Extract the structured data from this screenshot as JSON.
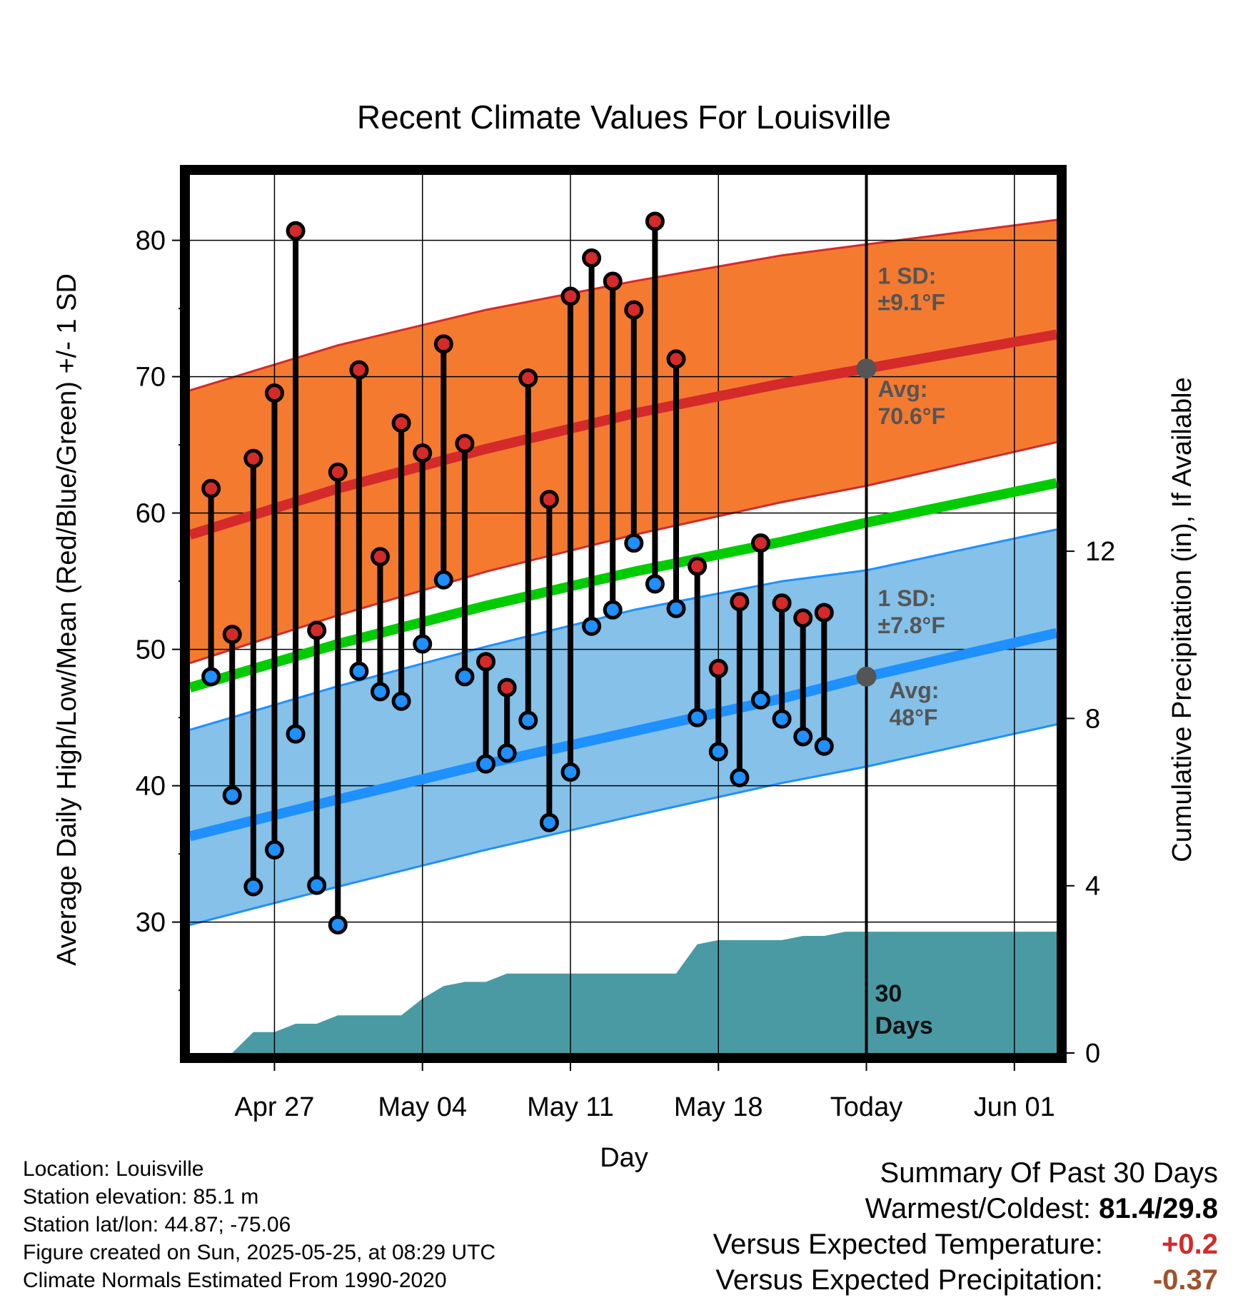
{
  "chart_data": {
    "type": "line",
    "title": "Recent Climate Values For Louisville",
    "xlabel": "Day",
    "ylabel": "Average Daily High/Low/Mean (Red/Blue/Green) +/- 1 SD",
    "y2label": "Cumulative Precipitation (in), If Available",
    "ylim": [
      20.4,
      84.8
    ],
    "y2lim": [
      0,
      21.0
    ],
    "xlim": [
      "2025-04-23",
      "2025-06-03"
    ],
    "yticks": [
      30,
      40,
      50,
      60,
      70,
      80
    ],
    "y2ticks": [
      0,
      4,
      8,
      12
    ],
    "xticks": [
      {
        "date": "2025-04-27",
        "label": "Apr 27"
      },
      {
        "date": "2025-05-04",
        "label": "May 04"
      },
      {
        "date": "2025-05-11",
        "label": "May 11"
      },
      {
        "date": "2025-05-18",
        "label": "May 18"
      },
      {
        "date": "2025-05-25",
        "label": "Today"
      },
      {
        "date": "2025-06-01",
        "label": "Jun 01"
      }
    ],
    "today": "2025-05-25",
    "colors": {
      "high_band": "#f47a30",
      "high_line": "#d42a2a",
      "low_band": "#85c1e9",
      "low_line": "#1e90ff",
      "mean_line": "#00cc00",
      "precip": "#4a9aa4",
      "high_dot": "#d42a2a",
      "low_dot": "#1e90ff"
    },
    "normal_high": {
      "x": [
        "2025-04-23",
        "2025-04-30",
        "2025-05-07",
        "2025-05-14",
        "2025-05-21",
        "2025-05-25",
        "2025-06-03"
      ],
      "mean": [
        58.4,
        61.8,
        64.7,
        67.3,
        69.5,
        70.6,
        73.1
      ],
      "upper": [
        69.0,
        72.3,
        74.9,
        77.0,
        78.9,
        79.7,
        81.5
      ],
      "lower": [
        49.0,
        52.5,
        55.7,
        58.4,
        60.8,
        62.0,
        65.2
      ]
    },
    "normal_low": {
      "x": [
        "2025-04-23",
        "2025-04-30",
        "2025-05-07",
        "2025-05-14",
        "2025-05-21",
        "2025-05-25",
        "2025-06-03"
      ],
      "mean": [
        36.3,
        39.0,
        41.6,
        44.0,
        46.4,
        48.0,
        51.2
      ],
      "upper": [
        44.1,
        47.3,
        50.2,
        52.9,
        55.0,
        55.8,
        58.8
      ],
      "lower": [
        29.8,
        32.6,
        35.3,
        37.8,
        40.2,
        41.4,
        44.5
      ]
    },
    "normal_mean": {
      "x": [
        "2025-04-23",
        "2025-04-30",
        "2025-05-07",
        "2025-05-14",
        "2025-05-21",
        "2025-05-25",
        "2025-06-03"
      ],
      "values": [
        47.2,
        50.4,
        53.2,
        55.7,
        57.9,
        59.3,
        62.2
      ]
    },
    "series": [
      {
        "name": "High",
        "x": [
          "2025-04-24",
          "2025-04-25",
          "2025-04-26",
          "2025-04-27",
          "2025-04-28",
          "2025-04-29",
          "2025-04-30",
          "2025-05-01",
          "2025-05-02",
          "2025-05-03",
          "2025-05-04",
          "2025-05-05",
          "2025-05-06",
          "2025-05-07",
          "2025-05-08",
          "2025-05-09",
          "2025-05-10",
          "2025-05-11",
          "2025-05-12",
          "2025-05-13",
          "2025-05-14",
          "2025-05-15",
          "2025-05-16",
          "2025-05-17",
          "2025-05-18",
          "2025-05-19",
          "2025-05-20",
          "2025-05-21",
          "2025-05-22",
          "2025-05-23",
          "2025-05-24"
        ],
        "values": [
          61.8,
          51.1,
          64.0,
          68.8,
          80.7,
          51.4,
          63.0,
          70.5,
          56.8,
          66.6,
          64.4,
          72.4,
          65.1,
          49.1,
          47.2,
          69.9,
          61.0,
          75.9,
          78.7,
          77.0,
          74.9,
          81.4,
          71.3,
          56.1,
          48.6,
          53.5,
          57.8,
          53.4,
          52.3,
          52.7,
          null
        ]
      },
      {
        "name": "Low",
        "x": [
          "2025-04-24",
          "2025-04-25",
          "2025-04-26",
          "2025-04-27",
          "2025-04-28",
          "2025-04-29",
          "2025-04-30",
          "2025-05-01",
          "2025-05-02",
          "2025-05-03",
          "2025-05-04",
          "2025-05-05",
          "2025-05-06",
          "2025-05-07",
          "2025-05-08",
          "2025-05-09",
          "2025-05-10",
          "2025-05-11",
          "2025-05-12",
          "2025-05-13",
          "2025-05-14",
          "2025-05-15",
          "2025-05-16",
          "2025-05-17",
          "2025-05-18",
          "2025-05-19",
          "2025-05-20",
          "2025-05-21",
          "2025-05-22",
          "2025-05-23",
          "2025-05-24"
        ],
        "values": [
          48.0,
          39.3,
          32.6,
          35.3,
          43.8,
          32.7,
          29.8,
          48.4,
          46.9,
          46.2,
          50.4,
          55.1,
          48.0,
          41.6,
          42.4,
          44.8,
          37.3,
          41.0,
          51.7,
          52.9,
          57.8,
          54.8,
          53.0,
          45.0,
          42.5,
          40.6,
          46.3,
          44.9,
          43.6,
          42.9,
          null
        ]
      },
      {
        "name": "Cumulative Precipitation",
        "axis": "y2",
        "x": [
          "2025-04-23",
          "2025-04-24",
          "2025-04-25",
          "2025-04-26",
          "2025-04-27",
          "2025-04-28",
          "2025-04-29",
          "2025-04-30",
          "2025-05-01",
          "2025-05-02",
          "2025-05-03",
          "2025-05-04",
          "2025-05-05",
          "2025-05-06",
          "2025-05-07",
          "2025-05-08",
          "2025-05-09",
          "2025-05-10",
          "2025-05-11",
          "2025-05-12",
          "2025-05-13",
          "2025-05-14",
          "2025-05-15",
          "2025-05-16",
          "2025-05-17",
          "2025-05-18",
          "2025-05-19",
          "2025-05-20",
          "2025-05-21",
          "2025-05-22",
          "2025-05-23",
          "2025-05-24",
          "2025-05-25",
          "2025-06-03"
        ],
        "values": [
          0.0,
          0.0,
          0.0,
          0.5,
          0.5,
          0.7,
          0.7,
          0.9,
          0.9,
          0.9,
          0.9,
          1.3,
          1.6,
          1.7,
          1.7,
          1.9,
          1.9,
          1.9,
          1.9,
          1.9,
          1.9,
          1.9,
          1.9,
          1.9,
          2.6,
          2.7,
          2.7,
          2.7,
          2.7,
          2.8,
          2.8,
          2.9,
          2.9,
          2.9
        ]
      }
    ],
    "annotations": {
      "high_sd": "1 SD:",
      "high_sd_value": "±9.1°F",
      "high_avg": "Avg:",
      "high_avg_value": "70.6°F",
      "low_sd": "1 SD:",
      "low_sd_value": "±7.8°F",
      "low_avg": "Avg:",
      "low_avg_value": "48°F",
      "days_count": "30",
      "days_label": "Days"
    }
  },
  "footer": {
    "location": "Location: Louisville",
    "elevation": "Station elevation: 85.1 m",
    "latlon": "Station lat/lon: 44.87; -75.06",
    "created": "Figure created on Sun, 2025-05-25, at 08:29 UTC",
    "normals": "Climate Normals Estimated From 1990-2020"
  },
  "summary": {
    "heading": "Summary Of Past 30 Days",
    "warmest_label": "Warmest/Coldest:",
    "warmest_value": "81.4/29.8",
    "temp_label": "Versus Expected Temperature:",
    "temp_value": "+0.2",
    "temp_color": "#d42a2a",
    "precip_label": "Versus Expected Precipitation:",
    "precip_value": "-0.37",
    "precip_color": "#a0522d"
  }
}
